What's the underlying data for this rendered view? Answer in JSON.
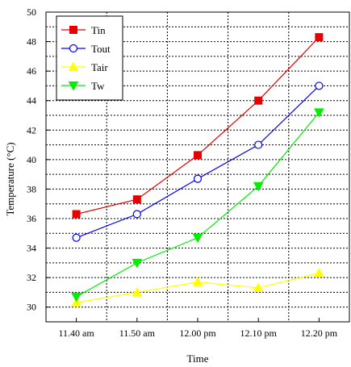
{
  "chart_data": {
    "type": "line",
    "xlabel": "Time",
    "ylabel": "Temperature (°C)",
    "categories": [
      "11.40 am",
      "11.50 am",
      "12.00 pm",
      "12.10 pm",
      "12.20 pm"
    ],
    "ylim": [
      29,
      50
    ],
    "yticks": [
      30,
      32,
      34,
      36,
      38,
      40,
      42,
      44,
      46,
      48,
      50
    ],
    "grid": true,
    "legend_position": "top-left",
    "series": [
      {
        "name": "Tin",
        "values": [
          36.3,
          37.3,
          40.3,
          44.0,
          48.3
        ],
        "color": "#e60000",
        "marker": "square-filled"
      },
      {
        "name": "Tout",
        "values": [
          34.7,
          36.3,
          38.7,
          41.0,
          45.0
        ],
        "color": "#0000ee",
        "marker": "circle-open"
      },
      {
        "name": "Tair",
        "values": [
          30.3,
          31.0,
          31.7,
          31.3,
          32.3
        ],
        "color": "#ffff00",
        "marker": "triangle-up-filled"
      },
      {
        "name": "Tw",
        "values": [
          30.7,
          33.0,
          34.7,
          38.2,
          43.2
        ],
        "color": "#00ee00",
        "marker": "triangle-down-filled"
      }
    ]
  }
}
